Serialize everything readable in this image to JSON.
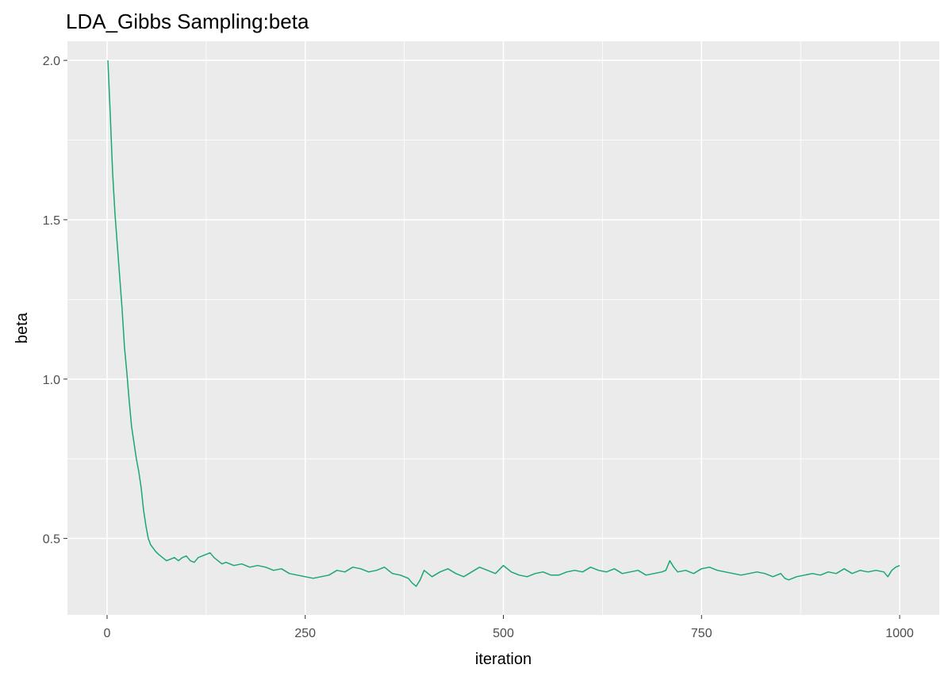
{
  "chart_data": {
    "type": "line",
    "title": "LDA_Gibbs Sampling:beta",
    "xlabel": "iteration",
    "ylabel": "beta",
    "xlim": [
      -50,
      1050
    ],
    "ylim": [
      0.26,
      2.06
    ],
    "x_ticks": [
      0,
      250,
      500,
      750,
      1000
    ],
    "x_tick_labels": [
      "0",
      "250",
      "500",
      "750",
      "1000"
    ],
    "y_ticks": [
      0.5,
      1.0,
      1.5,
      2.0
    ],
    "y_tick_labels": [
      "0.5",
      "1.0",
      "1.5",
      "2.0"
    ],
    "grid": true,
    "panel_background": "#ebebeb",
    "line_color": "#1aa86f",
    "series": [
      {
        "x": [
          1,
          4,
          7,
          10,
          13,
          16,
          19,
          22,
          25,
          28,
          31,
          34,
          37,
          40,
          43,
          46,
          49,
          52,
          55,
          58,
          61,
          65,
          70,
          75,
          80,
          85,
          90,
          95,
          100,
          105,
          110,
          115,
          120,
          125,
          130,
          135,
          140,
          145,
          150,
          160,
          170,
          180,
          190,
          200,
          210,
          220,
          230,
          240,
          250,
          260,
          270,
          280,
          290,
          300,
          310,
          320,
          330,
          340,
          350,
          360,
          370,
          380,
          385,
          390,
          395,
          400,
          410,
          420,
          430,
          440,
          450,
          460,
          470,
          480,
          490,
          500,
          510,
          520,
          530,
          540,
          550,
          560,
          570,
          580,
          590,
          600,
          610,
          620,
          630,
          640,
          650,
          660,
          670,
          680,
          690,
          700,
          705,
          710,
          715,
          720,
          730,
          740,
          750,
          760,
          770,
          780,
          790,
          800,
          810,
          820,
          830,
          840,
          850,
          855,
          860,
          870,
          880,
          890,
          900,
          910,
          920,
          930,
          940,
          950,
          960,
          970,
          980,
          985,
          990,
          995,
          1000
        ],
        "values": [
          2.0,
          1.83,
          1.65,
          1.52,
          1.42,
          1.32,
          1.22,
          1.1,
          1.02,
          0.93,
          0.85,
          0.8,
          0.75,
          0.71,
          0.66,
          0.59,
          0.54,
          0.5,
          0.48,
          0.47,
          0.46,
          0.45,
          0.44,
          0.43,
          0.435,
          0.44,
          0.43,
          0.44,
          0.445,
          0.43,
          0.425,
          0.44,
          0.445,
          0.45,
          0.455,
          0.44,
          0.43,
          0.42,
          0.425,
          0.415,
          0.42,
          0.41,
          0.415,
          0.41,
          0.4,
          0.405,
          0.39,
          0.385,
          0.38,
          0.375,
          0.38,
          0.385,
          0.4,
          0.395,
          0.41,
          0.405,
          0.395,
          0.4,
          0.41,
          0.39,
          0.385,
          0.375,
          0.36,
          0.35,
          0.37,
          0.4,
          0.38,
          0.395,
          0.405,
          0.39,
          0.38,
          0.395,
          0.41,
          0.4,
          0.39,
          0.415,
          0.395,
          0.385,
          0.38,
          0.39,
          0.395,
          0.385,
          0.385,
          0.395,
          0.4,
          0.395,
          0.41,
          0.4,
          0.395,
          0.405,
          0.39,
          0.395,
          0.4,
          0.385,
          0.39,
          0.395,
          0.4,
          0.43,
          0.41,
          0.395,
          0.4,
          0.39,
          0.405,
          0.41,
          0.4,
          0.395,
          0.39,
          0.385,
          0.39,
          0.395,
          0.39,
          0.38,
          0.39,
          0.375,
          0.37,
          0.38,
          0.385,
          0.39,
          0.385,
          0.395,
          0.39,
          0.405,
          0.39,
          0.4,
          0.395,
          0.4,
          0.395,
          0.38,
          0.4,
          0.41,
          0.415
        ]
      }
    ]
  }
}
